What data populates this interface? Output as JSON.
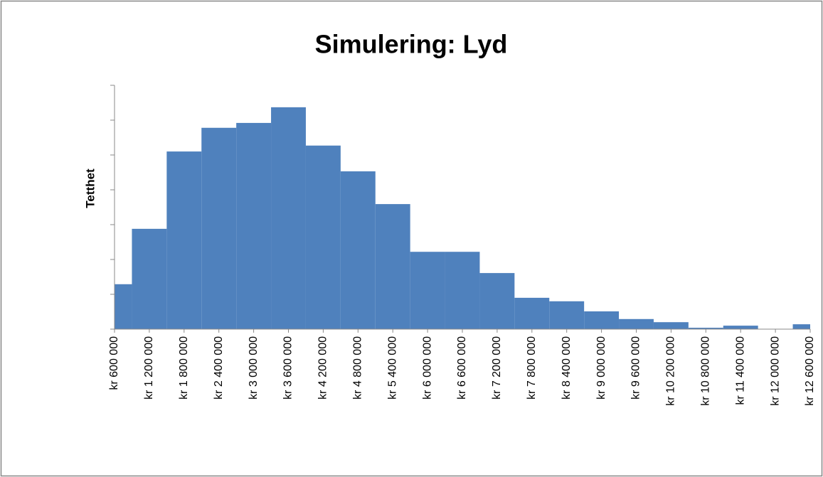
{
  "chart_data": {
    "type": "histogram",
    "title": "Simulering: Lyd",
    "y_label": "Tetthet",
    "bins": [
      600000,
      900000,
      1500000,
      2100000,
      2700000,
      3300000,
      3900000,
      4500000,
      5100000,
      5700000,
      6300000,
      6900000,
      7500000,
      8100000,
      8700000,
      9300000,
      9900000,
      10500000,
      11100000,
      11700000,
      12300000,
      12600000
    ],
    "values": [
      1.29,
      2.88,
      5.1,
      5.78,
      5.92,
      6.37,
      5.27,
      4.53,
      3.59,
      2.22,
      2.22,
      1.61,
      0.9,
      0.8,
      0.51,
      0.29,
      0.2,
      0.04,
      0.1,
      0,
      0.14
    ],
    "color": "#4f81bd",
    "xlim": [
      600000,
      12600000
    ],
    "xticks": [
      {
        "value": 600000,
        "label": "kr 600 000"
      },
      {
        "value": 1200000,
        "label": "kr 1 200 000"
      },
      {
        "value": 1800000,
        "label": "kr 1 800 000"
      },
      {
        "value": 2400000,
        "label": "kr 2 400 000"
      },
      {
        "value": 3000000,
        "label": "kr 3 000 000"
      },
      {
        "value": 3600000,
        "label": "kr 3 600 000"
      },
      {
        "value": 4200000,
        "label": "kr 4 200 000"
      },
      {
        "value": 4800000,
        "label": "kr 4 800 000"
      },
      {
        "value": 5400000,
        "label": "kr 5 400 000"
      },
      {
        "value": 6000000,
        "label": "kr 6 000 000"
      },
      {
        "value": 6600000,
        "label": "kr 6 600 000"
      },
      {
        "value": 7200000,
        "label": "kr 7 200 000"
      },
      {
        "value": 7800000,
        "label": "kr 7 800 000"
      },
      {
        "value": 8400000,
        "label": "kr 8 400 000"
      },
      {
        "value": 9000000,
        "label": "kr 9 000 000"
      },
      {
        "value": 9600000,
        "label": "kr 9 600 000"
      },
      {
        "value": 10200000,
        "label": "kr 10 200 000"
      },
      {
        "value": 10800000,
        "label": "kr 10 800 000"
      },
      {
        "value": 11400000,
        "label": "kr 11 400 000"
      },
      {
        "value": 12000000,
        "label": "kr 12 000 000"
      },
      {
        "value": 12600000,
        "label": "kr 12 600 000"
      }
    ],
    "ylim": [
      0,
      7
    ],
    "yticks": [
      0,
      1,
      2,
      3,
      4,
      5,
      6,
      7
    ],
    "grid": false
  }
}
